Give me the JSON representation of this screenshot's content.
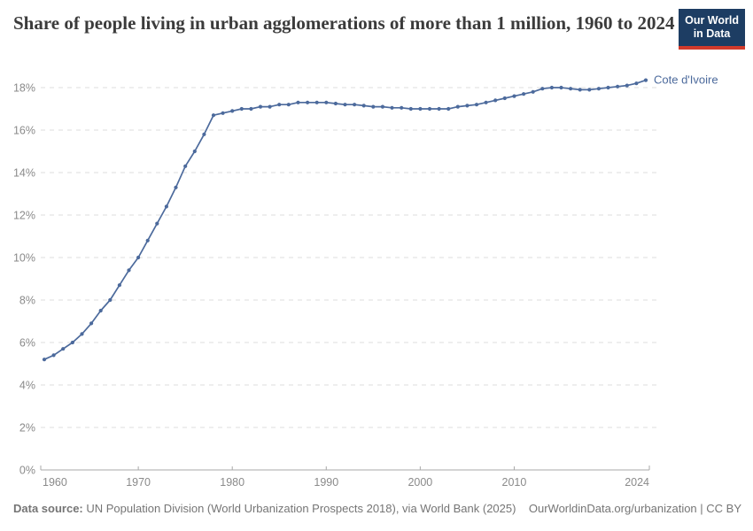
{
  "header": {
    "title": "Share of people living in urban agglomerations of more than 1 million, 1960 to 2024",
    "logo": {
      "line1": "Our World",
      "line2": "in Data",
      "bg_color": "#1d3d63",
      "accent_color": "#d23a2b"
    }
  },
  "chart_data": {
    "type": "line",
    "title": "Share of people living in urban agglomerations of more than 1 million, 1960 to 2024",
    "xlabel": "",
    "ylabel": "",
    "grid": "dashed-horizontal",
    "legend_position": "end-of-line-label",
    "xlim": [
      1959.62,
      2024.38
    ],
    "ylim": [
      0,
      18.6
    ],
    "x_ticks": [
      1960,
      1970,
      1980,
      1990,
      2000,
      2010,
      2024
    ],
    "y_ticks": [
      0,
      2,
      4,
      6,
      8,
      10,
      12,
      14,
      16,
      18
    ],
    "y_tick_suffix": "%",
    "colors": {
      "line": "#4c6a9c",
      "gridline": "#dedede",
      "axis": "#a8a8a8",
      "tick_label": "#8a8a8a"
    },
    "series": [
      {
        "name": "Cote d'Ivoire",
        "color": "#4c6a9c",
        "x": [
          1960,
          1961,
          1962,
          1963,
          1964,
          1965,
          1966,
          1967,
          1968,
          1969,
          1970,
          1971,
          1972,
          1973,
          1974,
          1975,
          1976,
          1977,
          1978,
          1979,
          1980,
          1981,
          1982,
          1983,
          1984,
          1985,
          1986,
          1987,
          1988,
          1989,
          1990,
          1991,
          1992,
          1993,
          1994,
          1995,
          1996,
          1997,
          1998,
          1999,
          2000,
          2001,
          2002,
          2003,
          2004,
          2005,
          2006,
          2007,
          2008,
          2009,
          2010,
          2011,
          2012,
          2013,
          2014,
          2015,
          2016,
          2017,
          2018,
          2019,
          2020,
          2021,
          2022,
          2023,
          2024
        ],
        "values": [
          5.2,
          5.4,
          5.7,
          6.0,
          6.4,
          6.9,
          7.5,
          8.0,
          8.7,
          9.4,
          10.0,
          10.8,
          11.6,
          12.4,
          13.3,
          14.3,
          15.0,
          15.8,
          16.7,
          16.8,
          16.9,
          17.0,
          17.0,
          17.1,
          17.1,
          17.2,
          17.2,
          17.3,
          17.3,
          17.3,
          17.3,
          17.25,
          17.2,
          17.2,
          17.15,
          17.1,
          17.1,
          17.05,
          17.05,
          17.0,
          17.0,
          17.0,
          17.0,
          17.0,
          17.1,
          17.15,
          17.2,
          17.3,
          17.4,
          17.5,
          17.6,
          17.7,
          17.8,
          17.95,
          18.0,
          18.0,
          17.95,
          17.9,
          17.9,
          17.95,
          18.0,
          18.05,
          18.1,
          18.2,
          18.35
        ]
      }
    ]
  },
  "footer": {
    "source_label": "Data source:",
    "source_text": " UN Population Division (World Urbanization Prospects 2018), via World Bank (2025)",
    "link_text": "OurWorldinData.org/urbanization | CC BY"
  }
}
